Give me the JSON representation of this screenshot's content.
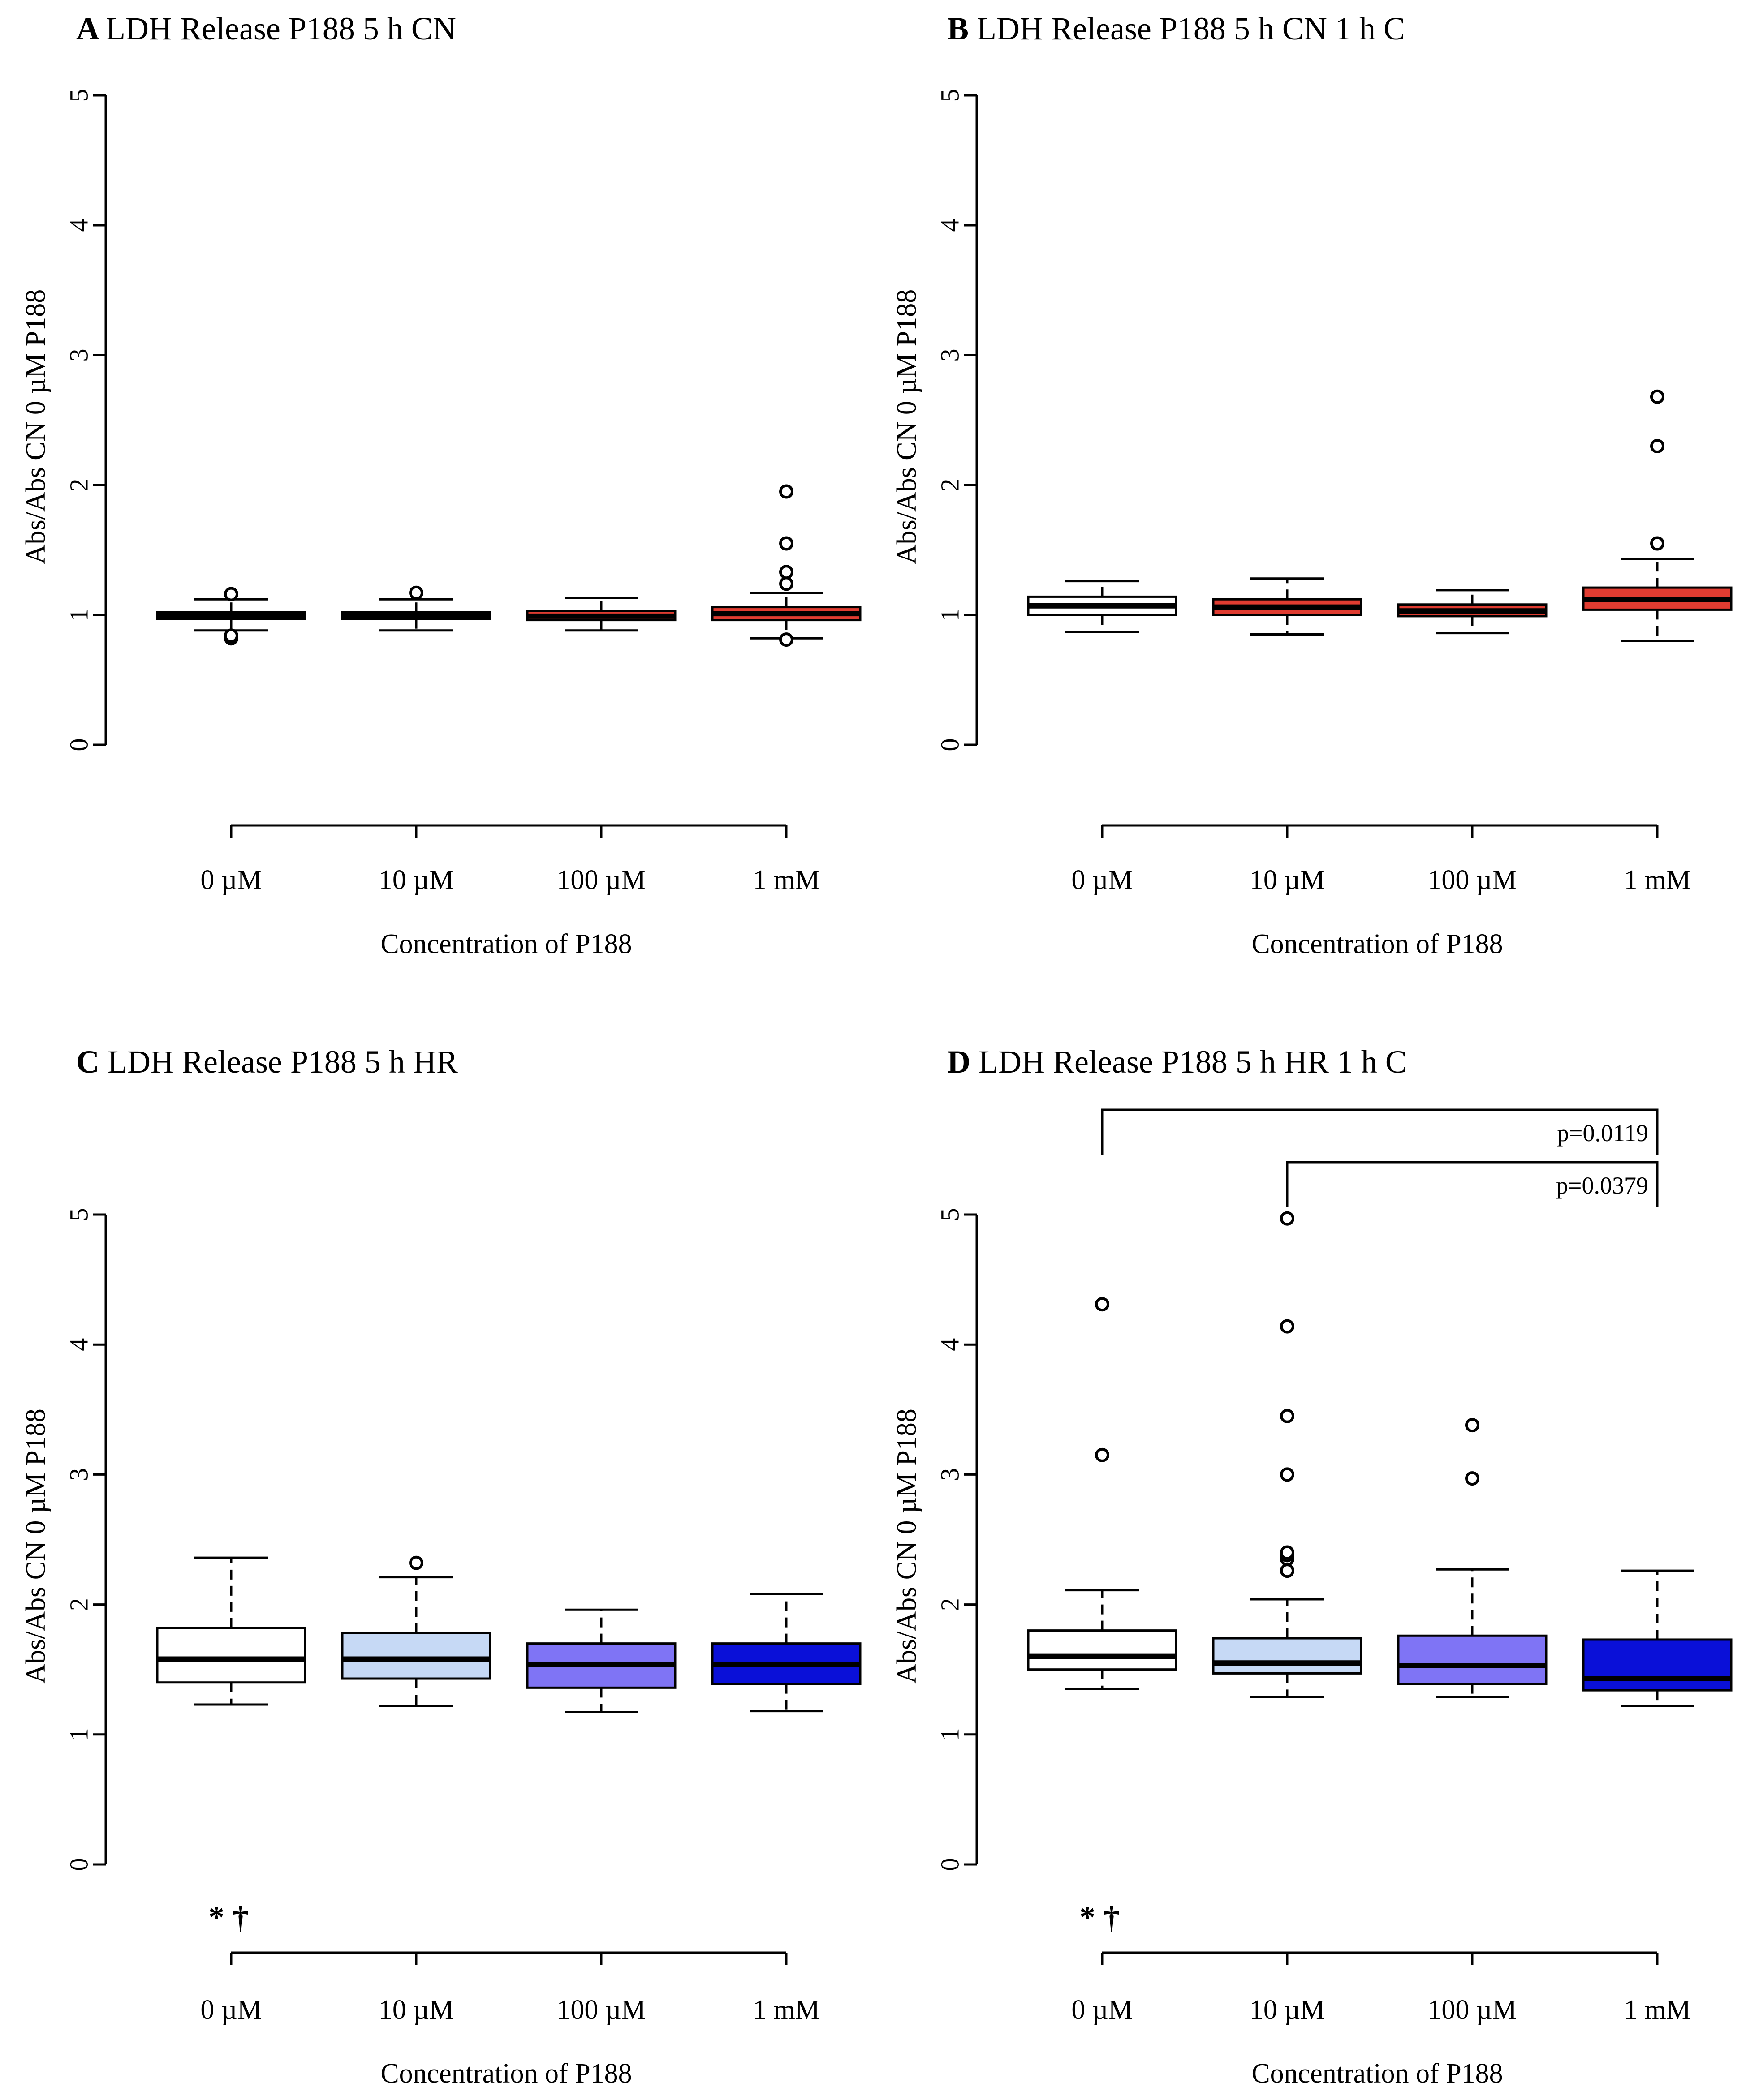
{
  "chart_data": [
    {
      "panel": "A",
      "type": "boxplot",
      "title": "LDH Release P188 5 h CN",
      "xlabel": "Concentration of P188",
      "ylabel": "Abs/Abs CN 0 µM P188",
      "ylim": [
        0,
        5
      ],
      "yticks": [
        0,
        1,
        2,
        3,
        4,
        5
      ],
      "categories": [
        "0 µM",
        "10 µM",
        "100 µM",
        "1 mM"
      ],
      "colors": [
        "#ffffff",
        "#ffffff",
        "#e03c31",
        "#e03c31"
      ],
      "boxes": [
        {
          "whisker_low": 0.88,
          "q1": 0.97,
          "median": 1.0,
          "q3": 1.02,
          "whisker_high": 1.12,
          "outliers": [
            0.82,
            0.84,
            1.16
          ]
        },
        {
          "whisker_low": 0.88,
          "q1": 0.97,
          "median": 1.0,
          "q3": 1.02,
          "whisker_high": 1.12,
          "outliers": [
            1.17
          ]
        },
        {
          "whisker_low": 0.88,
          "q1": 0.96,
          "median": 0.99,
          "q3": 1.03,
          "whisker_high": 1.13,
          "outliers": []
        },
        {
          "whisker_low": 0.82,
          "q1": 0.96,
          "median": 1.01,
          "q3": 1.06,
          "whisker_high": 1.17,
          "outliers": [
            0.81,
            1.24,
            1.33,
            1.55,
            1.95
          ]
        }
      ],
      "annotations": []
    },
    {
      "panel": "B",
      "type": "boxplot",
      "title": "LDH Release P188 5 h CN 1 h C",
      "xlabel": "Concentration of P188",
      "ylabel": "Abs/Abs CN 0 µM P188",
      "ylim": [
        0,
        5
      ],
      "yticks": [
        0,
        1,
        2,
        3,
        4,
        5
      ],
      "categories": [
        "0 µM",
        "10 µM",
        "100 µM",
        "1 mM"
      ],
      "colors": [
        "#ffffff",
        "#e03c31",
        "#e03c31",
        "#e03c31"
      ],
      "boxes": [
        {
          "whisker_low": 0.87,
          "q1": 1.0,
          "median": 1.07,
          "q3": 1.14,
          "whisker_high": 1.26,
          "outliers": []
        },
        {
          "whisker_low": 0.85,
          "q1": 1.0,
          "median": 1.06,
          "q3": 1.12,
          "whisker_high": 1.28,
          "outliers": []
        },
        {
          "whisker_low": 0.86,
          "q1": 0.99,
          "median": 1.03,
          "q3": 1.08,
          "whisker_high": 1.19,
          "outliers": []
        },
        {
          "whisker_low": 0.8,
          "q1": 1.04,
          "median": 1.12,
          "q3": 1.21,
          "whisker_high": 1.43,
          "outliers": [
            1.55,
            2.3,
            2.68
          ]
        }
      ],
      "annotations": []
    },
    {
      "panel": "C",
      "type": "boxplot",
      "title": "LDH Release P188 5 h HR",
      "xlabel": "Concentration of P188",
      "ylabel": "Abs/Abs CN 0 µM P188",
      "ylim": [
        0,
        5
      ],
      "yticks": [
        0,
        1,
        2,
        3,
        4,
        5
      ],
      "categories": [
        "0 µM",
        "10 µM",
        "100 µM",
        "1 mM"
      ],
      "colors": [
        "#ffffff",
        "#c6d9f5",
        "#7f74f5",
        "#0a10d8"
      ],
      "boxes": [
        {
          "whisker_low": 1.23,
          "q1": 1.4,
          "median": 1.58,
          "q3": 1.82,
          "whisker_high": 2.36,
          "outliers": []
        },
        {
          "whisker_low": 1.22,
          "q1": 1.43,
          "median": 1.58,
          "q3": 1.78,
          "whisker_high": 2.21,
          "outliers": [
            2.32
          ]
        },
        {
          "whisker_low": 1.17,
          "q1": 1.36,
          "median": 1.54,
          "q3": 1.7,
          "whisker_high": 1.96,
          "outliers": []
        },
        {
          "whisker_low": 1.18,
          "q1": 1.39,
          "median": 1.54,
          "q3": 1.7,
          "whisker_high": 2.08,
          "outliers": []
        }
      ],
      "annotations": [],
      "significance": "* †"
    },
    {
      "panel": "D",
      "type": "boxplot",
      "title": "LDH Release P188 5 h HR 1 h C",
      "xlabel": "Concentration of P188",
      "ylabel": "Abs/Abs CN 0 µM P188",
      "ylim": [
        0,
        5
      ],
      "yticks": [
        0,
        1,
        2,
        3,
        4,
        5
      ],
      "categories": [
        "0 µM",
        "10 µM",
        "100 µM",
        "1 mM"
      ],
      "colors": [
        "#ffffff",
        "#c6d9f5",
        "#7f74f5",
        "#0a10d8"
      ],
      "boxes": [
        {
          "whisker_low": 1.35,
          "q1": 1.5,
          "median": 1.6,
          "q3": 1.8,
          "whisker_high": 2.11,
          "outliers": [
            3.15,
            4.31
          ]
        },
        {
          "whisker_low": 1.29,
          "q1": 1.47,
          "median": 1.55,
          "q3": 1.74,
          "whisker_high": 2.04,
          "outliers": [
            2.26,
            2.35,
            2.38,
            2.4,
            3.0,
            3.45,
            4.14,
            4.97
          ]
        },
        {
          "whisker_low": 1.29,
          "q1": 1.39,
          "median": 1.53,
          "q3": 1.76,
          "whisker_high": 2.27,
          "outliers": [
            2.97,
            3.38
          ]
        },
        {
          "whisker_low": 1.22,
          "q1": 1.34,
          "median": 1.43,
          "q3": 1.73,
          "whisker_high": 2.26,
          "outliers": []
        }
      ],
      "annotations": [
        {
          "from": 0,
          "to": 3,
          "label": "p=0.0119"
        },
        {
          "from": 1,
          "to": 3,
          "label": "p=0.0379"
        }
      ],
      "significance": "* †"
    }
  ]
}
